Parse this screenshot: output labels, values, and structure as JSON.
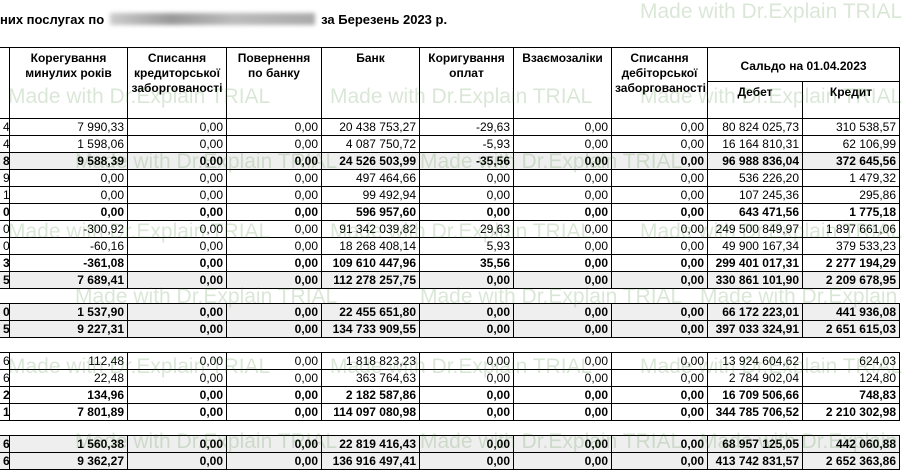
{
  "header": {
    "title_start": "них послугах по",
    "title_end": "за Березень 2023 р."
  },
  "watermark": "Made with Dr.Explain TRIAL",
  "table": {
    "columns": [
      "Корегування минулих років",
      "Списання кредиторської заборгованості",
      "Повернення по банку",
      "Банк",
      "Коригування оплат",
      "Взаємозаліки",
      "Списання дебіторської заборгованості"
    ],
    "balance_header": "Сальдо на 01.04.2023",
    "balance_columns": [
      "Дебет",
      "Кредит"
    ],
    "groups": [
      [
        {
          "cells": [
            "4",
            "7 990,33",
            "0,00",
            "0,00",
            "20 438 753,27",
            "-29,63",
            "0,00",
            "0,00",
            "80 824 025,73",
            "310 538,57"
          ],
          "bold": false,
          "shaded": false
        },
        {
          "cells": [
            "4",
            "1 598,06",
            "0,00",
            "0,00",
            "4 087 750,72",
            "-5,93",
            "0,00",
            "0,00",
            "16 164 810,31",
            "62 106,99"
          ],
          "bold": false,
          "shaded": false
        },
        {
          "cells": [
            "8",
            "9 588,39",
            "0,00",
            "0,00",
            "24 526 503,99",
            "-35,56",
            "0,00",
            "0,00",
            "96 988 836,04",
            "372 645,56"
          ],
          "bold": true,
          "shaded": true
        },
        {
          "cells": [
            "9",
            "0,00",
            "0,00",
            "0,00",
            "497 464,66",
            "0,00",
            "0,00",
            "0,00",
            "536 226,20",
            "1 479,32"
          ],
          "bold": false,
          "shaded": false
        },
        {
          "cells": [
            "1",
            "0,00",
            "0,00",
            "0,00",
            "99 492,94",
            "0,00",
            "0,00",
            "0,00",
            "107 245,36",
            "295,86"
          ],
          "bold": false,
          "shaded": false
        },
        {
          "cells": [
            "0",
            "0,00",
            "0,00",
            "0,00",
            "596 957,60",
            "0,00",
            "0,00",
            "0,00",
            "643 471,56",
            "1 775,18"
          ],
          "bold": true,
          "shaded": false
        },
        {
          "cells": [
            "0",
            "-300,92",
            "0,00",
            "0,00",
            "91 342 039,82",
            "29,63",
            "0,00",
            "0,00",
            "249 500 849,97",
            "1 897 661,06"
          ],
          "bold": false,
          "shaded": false
        },
        {
          "cells": [
            "0",
            "-60,16",
            "0,00",
            "0,00",
            "18 268 408,14",
            "5,93",
            "0,00",
            "0,00",
            "49 900 167,34",
            "379 533,23"
          ],
          "bold": false,
          "shaded": false
        },
        {
          "cells": [
            "3",
            "-361,08",
            "0,00",
            "0,00",
            "109 610 447,96",
            "35,56",
            "0,00",
            "0,00",
            "299 401 017,31",
            "2 277 194,29"
          ],
          "bold": true,
          "shaded": false
        },
        {
          "cells": [
            "5",
            "7 689,41",
            "0,00",
            "0,00",
            "112 278 257,75",
            "0,00",
            "0,00",
            "0,00",
            "330 861 101,90",
            "2 209 678,95"
          ],
          "bold": true,
          "shaded": true
        }
      ],
      [
        {
          "cells": [
            "0",
            "1 537,90",
            "0,00",
            "0,00",
            "22 455 651,80",
            "0,00",
            "0,00",
            "0,00",
            "66 172 223,01",
            "441 936,08"
          ],
          "bold": true,
          "shaded": true
        },
        {
          "cells": [
            "5",
            "9 227,31",
            "0,00",
            "0,00",
            "134 733 909,55",
            "0,00",
            "0,00",
            "0,00",
            "397 033 324,91",
            "2 651 615,03"
          ],
          "bold": true,
          "shaded": true
        }
      ],
      [
        {
          "cells": [
            "6",
            "112,48",
            "0,00",
            "0,00",
            "1 818 823,23",
            "0,00",
            "0,00",
            "0,00",
            "13 924 604,62",
            "624,03"
          ],
          "bold": false,
          "shaded": false
        },
        {
          "cells": [
            "6",
            "22,48",
            "0,00",
            "0,00",
            "363 764,63",
            "0,00",
            "0,00",
            "0,00",
            "2 784 902,04",
            "124,80"
          ],
          "bold": false,
          "shaded": false
        },
        {
          "cells": [
            "2",
            "134,96",
            "0,00",
            "0,00",
            "2 182 587,86",
            "0,00",
            "0,00",
            "0,00",
            "16 709 506,66",
            "748,83"
          ],
          "bold": true,
          "shaded": false
        },
        {
          "cells": [
            "1",
            "7 801,89",
            "0,00",
            "0,00",
            "114 097 080,98",
            "0,00",
            "0,00",
            "0,00",
            "344 785 706,52",
            "2 210 302,98"
          ],
          "bold": true,
          "shaded": false
        }
      ],
      [
        {
          "cells": [
            "6",
            "1 560,38",
            "0,00",
            "0,00",
            "22 819 416,43",
            "0,00",
            "0,00",
            "0,00",
            "68 957 125,05",
            "442 060,88"
          ],
          "bold": true,
          "shaded": true
        },
        {
          "cells": [
            "6",
            "9 362,27",
            "0,00",
            "0,00",
            "136 916 497,41",
            "0,00",
            "0,00",
            "0,00",
            "413 742 831,57",
            "2 652 363,86"
          ],
          "bold": true,
          "shaded": true
        }
      ]
    ]
  }
}
